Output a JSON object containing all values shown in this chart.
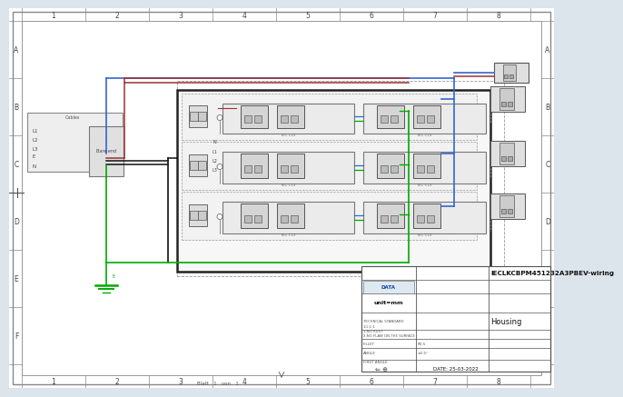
{
  "title": "IECLKCBPM451232A3PBEV-wiring",
  "subtitle": "Housing",
  "date": "DATE: 25-03-2022",
  "unit": "unit=mm",
  "fillet": "R0.5",
  "angle": "±0.5°",
  "first_angle": "FIRST ANGLE",
  "page_bg": "#dce4ec",
  "drawing_bg": "#ffffff",
  "grid_row_labels": [
    "A",
    "B",
    "C",
    "D",
    "E",
    "F"
  ],
  "wire_blue": "#3366cc",
  "wire_red": "#993333",
  "wire_green": "#00aa00",
  "wire_black": "#111111",
  "wire_gray": "#888888"
}
